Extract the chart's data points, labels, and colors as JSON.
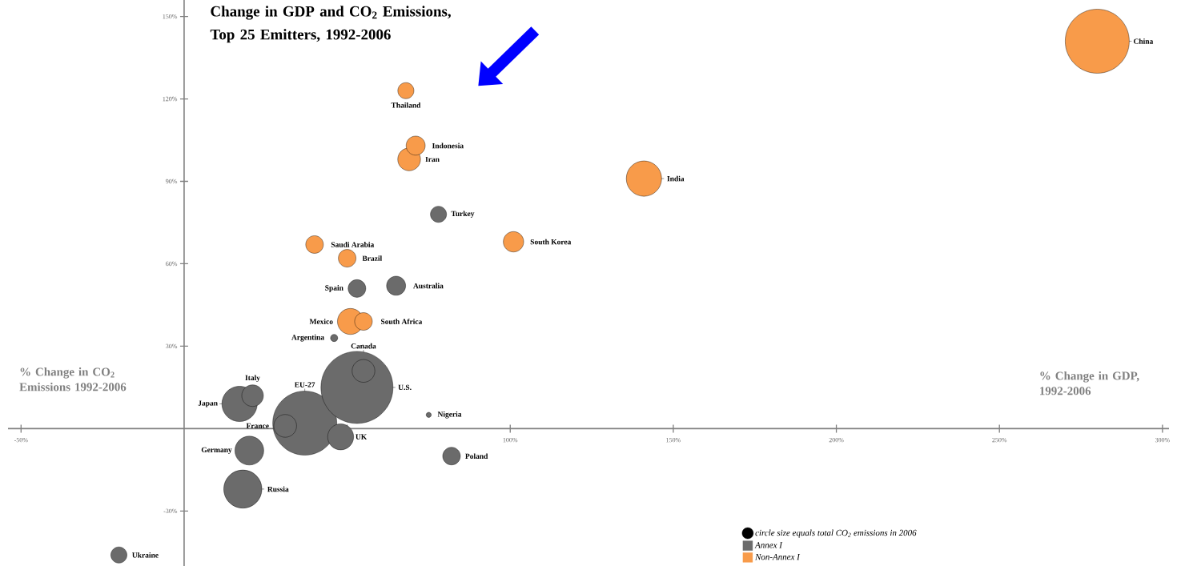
{
  "chart_data": {
    "type": "bubble",
    "title": "Change in GDP and CO$_{2}$ Emissions, Top 25 Emitters, 1992-2006",
    "xlabel": "% Change in GDP, 1992-2006",
    "ylabel": "% Change in CO$_{2}$ Emissions 1992-2006",
    "xlim": [
      -54,
      302
    ],
    "ylim": [
      -50,
      156
    ],
    "xticks": [
      {
        "value": -50,
        "label": "-50%"
      },
      {
        "value": 50,
        "label": null
      },
      {
        "value": 100,
        "label": "100%"
      },
      {
        "value": 150,
        "label": "150%"
      },
      {
        "value": 200,
        "label": "200%"
      },
      {
        "value": 250,
        "label": "250%"
      },
      {
        "value": 300,
        "label": "300%"
      }
    ],
    "yticks": [
      {
        "value": -30,
        "label": "-30%"
      },
      {
        "value": 30,
        "label": "30%"
      },
      {
        "value": 60,
        "label": "60%"
      },
      {
        "value": 90,
        "label": "90%"
      },
      {
        "value": 120,
        "label": "120%"
      },
      {
        "value": 150,
        "label": "150%"
      }
    ],
    "legend": "bottom right",
    "series": [
      {
        "name": "Annex I",
        "color": "#6b6b6b",
        "x": [
          53,
          37,
          18,
          17,
          20,
          55,
          48,
          21,
          31,
          65,
          53,
          82,
          78,
          -20,
          46,
          75
        ],
        "values": [
          15,
          2,
          -22,
          9,
          -8,
          21,
          -3,
          12,
          1,
          52,
          51,
          -10,
          78,
          -46,
          33,
          5
        ],
        "sizes": [
          1,
          0.79,
          0.28,
          0.24,
          0.16,
          0.1,
          0.13,
          0.09,
          0.1,
          0.07,
          0.06,
          0.06,
          0.05,
          0.05,
          0.01,
          0.005
        ]
      },
      {
        "name": "Non-Annex I",
        "color": "#f89b4a",
        "x": [
          280,
          141,
          69,
          71,
          68,
          101,
          40,
          50,
          51,
          55
        ],
        "values": [
          141,
          91,
          98,
          103,
          123,
          68,
          67,
          62,
          39,
          39
        ],
        "sizes": [
          0.79,
          0.24,
          0.1,
          0.07,
          0.05,
          0.08,
          0.06,
          0.06,
          0.13,
          0.06
        ]
      }
    ],
    "annotations": [
      "circle size equals total CO$_{2}$ emissions in 2006",
      {
        "text": "U.S.",
        "x": 53,
        "y": 15
      },
      {
        "text": "China",
        "x": 280,
        "y": 141
      },
      {
        "text": "EU-27",
        "x": 37,
        "y": 2
      },
      {
        "text": "Russia",
        "x": 18,
        "y": -22
      },
      {
        "text": "Japan",
        "x": 17,
        "y": 9
      },
      {
        "text": "India",
        "x": 141,
        "y": 91
      },
      {
        "text": "Germany",
        "x": 20,
        "y": -8
      },
      {
        "text": "UK",
        "x": 48,
        "y": -3
      },
      {
        "text": "Mexico",
        "x": 51,
        "y": 39
      },
      {
        "text": "Canada",
        "x": 55,
        "y": 21
      },
      {
        "text": "France",
        "x": 31,
        "y": 1
      },
      {
        "text": "Iran",
        "x": 69,
        "y": 98
      },
      {
        "text": "Italy",
        "x": 21,
        "y": 12
      },
      {
        "text": "South Korea",
        "x": 101,
        "y": 68
      },
      {
        "text": "Australia",
        "x": 65,
        "y": 52
      },
      {
        "text": "Spain",
        "x": 53,
        "y": 51
      },
      {
        "text": "Indonesia",
        "x": 71,
        "y": 103
      },
      {
        "text": "Poland",
        "x": 82,
        "y": -10
      },
      {
        "text": "Saudi Arabia",
        "x": 40,
        "y": 67
      },
      {
        "text": "Brazil",
        "x": 50,
        "y": 62
      },
      {
        "text": "South Africa",
        "x": 55,
        "y": 39
      },
      {
        "text": "Ukraine",
        "x": -20,
        "y": -46
      },
      {
        "text": "Thailand",
        "x": 68,
        "y": 123
      },
      {
        "text": "Turkey",
        "x": 78,
        "y": 78
      },
      {
        "text": "Argentina",
        "x": 46,
        "y": 33
      },
      {
        "text": "Nigeria",
        "x": 75,
        "y": 5
      }
    ]
  }
}
